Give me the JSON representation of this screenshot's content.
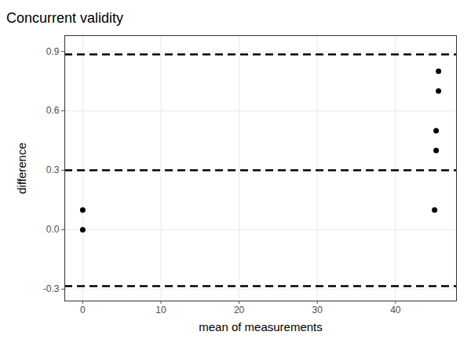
{
  "chart_data": {
    "type": "scatter",
    "title": "Concurrent validity",
    "x_label": "mean of measurements",
    "y_label": "difference",
    "x": [
      0,
      0,
      45,
      45.2,
      45.2,
      45.5,
      45.5
    ],
    "values": [
      0.1,
      0.0,
      0.1,
      0.4,
      0.5,
      0.7,
      0.8
    ],
    "color": "#000000",
    "marker": "circle",
    "hlines": [
      0.885,
      0.3,
      -0.285
    ],
    "xlim": [
      -2.3,
      47.8
    ],
    "xticks": [
      0,
      10,
      20,
      30,
      40
    ],
    "ylim": [
      -0.36,
      0.98
    ],
    "yticks": [
      -0.3,
      {
        "value": 0,
        "label": "0.0"
      },
      0.3,
      0.6,
      0.9
    ],
    "grid": true
  }
}
